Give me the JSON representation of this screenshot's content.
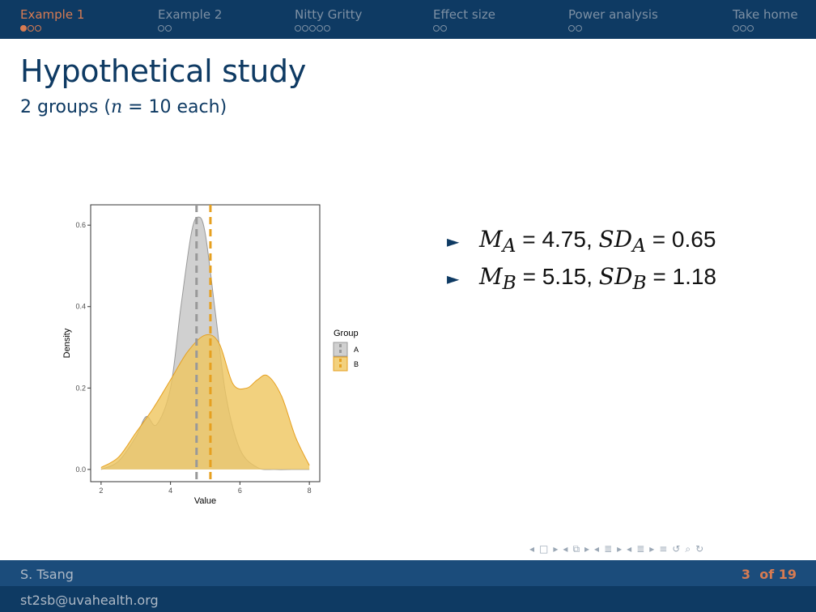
{
  "nav": {
    "sections": [
      {
        "label": "Example 1",
        "dots": 3,
        "current_dot": 0,
        "active": true
      },
      {
        "label": "Example 2",
        "dots": 2,
        "current_dot": -1,
        "active": false
      },
      {
        "label": "Nitty Gritty",
        "dots": 5,
        "current_dot": -1,
        "active": false
      },
      {
        "label": "Effect size",
        "dots": 2,
        "current_dot": -1,
        "active": false
      },
      {
        "label": "Power analysis",
        "dots": 2,
        "current_dot": -1,
        "active": false
      },
      {
        "label": "Take home",
        "dots": 3,
        "current_dot": -1,
        "active": false
      }
    ]
  },
  "frame": {
    "title": "Hypothetical study",
    "subtitle_prefix": "2 groups (",
    "subtitle_n": "n",
    "subtitle_suffix": " = 10 each)"
  },
  "bullets": [
    {
      "m": "M",
      "m_sub": "A",
      "m_val": " = 4.75, ",
      "sd": "SD",
      "sd_sub": "A",
      "sd_val": " = 0.65"
    },
    {
      "m": "M",
      "m_sub": "B",
      "m_val": " = 5.15, ",
      "sd": "SD",
      "sd_sub": "B",
      "sd_val": " = 1.18"
    }
  ],
  "chart_data": {
    "type": "area",
    "xlabel": "Value",
    "ylabel": "Density",
    "xlim": [
      1.7,
      8.3
    ],
    "ylim": [
      -0.03,
      0.65
    ],
    "x_ticks": [
      2,
      4,
      6,
      8
    ],
    "y_ticks": [
      0.0,
      0.2,
      0.4,
      0.6
    ],
    "y_tick_labels": [
      "0.0",
      "0.2",
      "0.4",
      "0.6"
    ],
    "legend_title": "Group",
    "legend_placement": "right",
    "series": [
      {
        "name": "A",
        "color": "#999999",
        "fill": "#c4c4c4",
        "mean": 4.75,
        "x": [
          2.0,
          2.5,
          3.0,
          3.3,
          3.6,
          4.0,
          4.3,
          4.6,
          4.8,
          5.0,
          5.3,
          5.6,
          6.0,
          6.5,
          7.0,
          7.5,
          8.0
        ],
        "y": [
          0.0,
          0.02,
          0.08,
          0.13,
          0.11,
          0.2,
          0.4,
          0.58,
          0.62,
          0.58,
          0.38,
          0.18,
          0.05,
          0.005,
          0.0,
          0.0,
          0.0
        ]
      },
      {
        "name": "B",
        "color": "#e6a020",
        "fill": "#efc55e",
        "mean": 5.15,
        "x": [
          2.0,
          2.5,
          3.0,
          3.5,
          4.0,
          4.5,
          5.0,
          5.4,
          5.8,
          6.2,
          6.5,
          6.8,
          7.2,
          7.6,
          8.0
        ],
        "y": [
          0.005,
          0.03,
          0.09,
          0.15,
          0.22,
          0.29,
          0.33,
          0.31,
          0.21,
          0.2,
          0.22,
          0.23,
          0.18,
          0.08,
          0.01
        ]
      }
    ]
  },
  "footer": {
    "author": "S. Tsang",
    "email": "st2sb@uvahealth.org",
    "page_current": "3",
    "page_of": "of 19"
  },
  "beamer_nav": {
    "icons": [
      "◂",
      "□",
      "▸",
      "◂",
      "⧉",
      "▸",
      "◂",
      "≣",
      "▸",
      "◂",
      "≣",
      "▸",
      "≡",
      "↺",
      "⌕",
      "↻"
    ]
  }
}
